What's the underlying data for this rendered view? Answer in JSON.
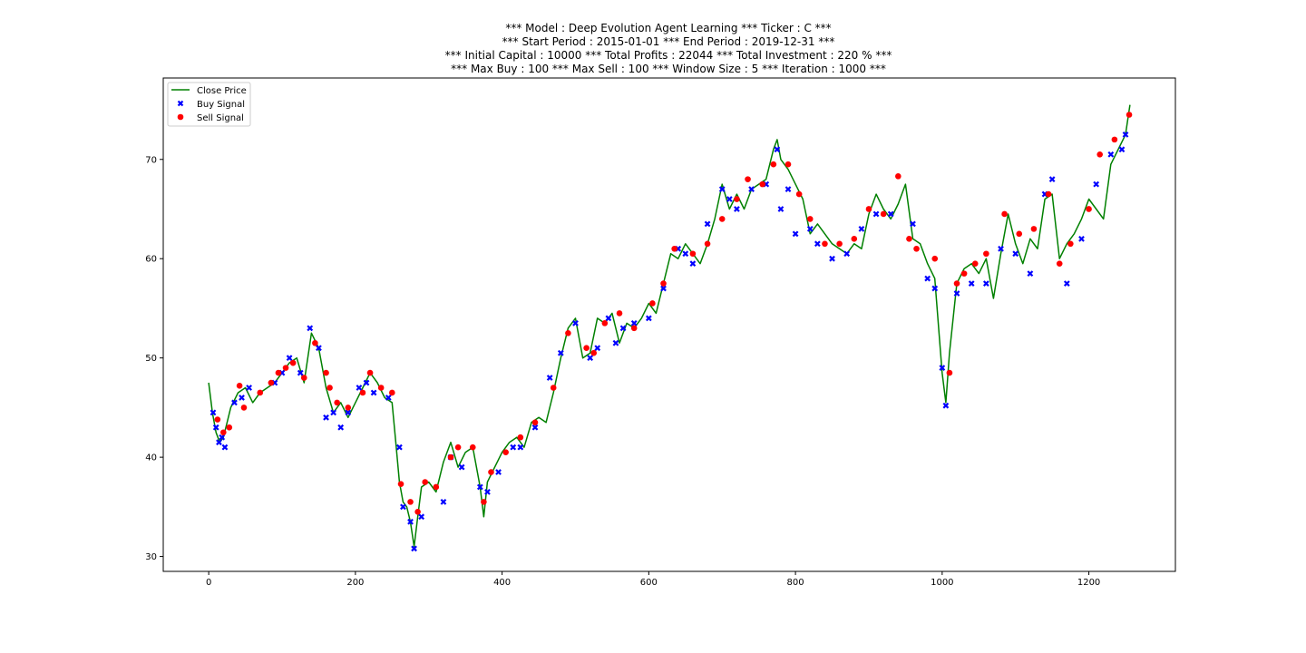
{
  "chart_data": {
    "type": "line",
    "title_lines": [
      "*** Model : Deep Evolution Agent Learning *** Ticker : C ***",
      "*** Start Period : 2015-01-01 *** End Period : 2019-12-31 ***",
      "*** Initial Capital : 10000 *** Total Profits : 22044 *** Total Investment : 220 % ***",
      "*** Max Buy : 100 *** Max Sell : 100 *** Window Size : 5 *** Iteration : 1000 ***"
    ],
    "xlabel": "",
    "ylabel": "",
    "xlim": [
      -62,
      1318
    ],
    "ylim": [
      28.5,
      78.2
    ],
    "x_ticks": [
      0,
      200,
      400,
      600,
      800,
      1000,
      1200
    ],
    "y_ticks": [
      30,
      40,
      50,
      60,
      70
    ],
    "legend_position": "top-left",
    "colors": {
      "close": "#008000",
      "buy": "#0000ff",
      "sell": "#ff0000"
    },
    "series": [
      {
        "name": "Close Price",
        "type": "line",
        "x": [
          0,
          5,
          10,
          15,
          20,
          25,
          30,
          40,
          50,
          60,
          70,
          80,
          90,
          100,
          110,
          120,
          130,
          140,
          150,
          160,
          170,
          180,
          190,
          200,
          210,
          220,
          230,
          240,
          250,
          255,
          260,
          265,
          270,
          275,
          280,
          285,
          290,
          300,
          310,
          320,
          330,
          340,
          350,
          360,
          370,
          375,
          380,
          390,
          400,
          410,
          420,
          430,
          440,
          450,
          460,
          470,
          480,
          490,
          500,
          510,
          520,
          530,
          540,
          550,
          560,
          570,
          580,
          590,
          600,
          610,
          620,
          630,
          640,
          650,
          660,
          670,
          680,
          690,
          700,
          710,
          720,
          730,
          740,
          750,
          760,
          770,
          775,
          780,
          790,
          800,
          810,
          820,
          830,
          840,
          850,
          860,
          870,
          880,
          890,
          900,
          910,
          920,
          930,
          940,
          950,
          960,
          970,
          980,
          990,
          1000,
          1005,
          1010,
          1020,
          1030,
          1040,
          1050,
          1060,
          1070,
          1080,
          1090,
          1100,
          1110,
          1120,
          1130,
          1140,
          1150,
          1160,
          1170,
          1180,
          1190,
          1200,
          1210,
          1220,
          1230,
          1240,
          1250,
          1256
        ],
        "y": [
          47.5,
          44.5,
          42.5,
          41.5,
          42.0,
          43.5,
          45.0,
          46.5,
          47.0,
          45.5,
          46.5,
          47.0,
          47.5,
          48.5,
          49.5,
          50.0,
          47.5,
          52.5,
          51.0,
          47.0,
          44.5,
          45.5,
          44.0,
          45.5,
          47.0,
          48.5,
          47.5,
          46.0,
          45.5,
          41.5,
          37.5,
          35.5,
          35.0,
          33.5,
          31.0,
          34.0,
          37.0,
          37.5,
          36.5,
          39.5,
          41.5,
          39.0,
          40.5,
          41.0,
          37.0,
          34.0,
          37.5,
          39.0,
          40.5,
          41.5,
          42.0,
          41.0,
          43.5,
          44.0,
          43.5,
          46.5,
          50.0,
          53.0,
          54.0,
          50.0,
          50.5,
          54.0,
          53.5,
          54.5,
          51.5,
          53.5,
          53.0,
          54.0,
          55.5,
          54.5,
          57.5,
          60.5,
          60.0,
          61.5,
          60.5,
          59.5,
          61.5,
          64.0,
          67.5,
          65.0,
          66.5,
          65.0,
          67.0,
          67.5,
          68.0,
          71.0,
          72.0,
          70.0,
          69.0,
          67.5,
          66.0,
          62.5,
          63.5,
          62.5,
          61.5,
          61.0,
          60.5,
          61.5,
          61.0,
          64.5,
          66.5,
          65.0,
          64.0,
          65.5,
          67.5,
          62.0,
          61.5,
          59.5,
          58.0,
          48.5,
          45.5,
          50.5,
          57.5,
          59.0,
          59.5,
          58.5,
          60.0,
          56.0,
          60.5,
          64.5,
          61.5,
          59.5,
          62.0,
          61.0,
          66.0,
          66.5,
          60.0,
          61.5,
          62.5,
          64.0,
          66.0,
          65.0,
          64.0,
          69.5,
          71.0,
          72.5,
          75.5
        ]
      },
      {
        "name": "Buy Signal",
        "type": "scatter",
        "marker": "X",
        "x": [
          6,
          10,
          14,
          18,
          22,
          35,
          45,
          55,
          90,
          100,
          110,
          125,
          138,
          150,
          160,
          170,
          180,
          190,
          205,
          215,
          225,
          245,
          260,
          265,
          275,
          280,
          290,
          320,
          330,
          345,
          370,
          380,
          395,
          415,
          425,
          445,
          465,
          480,
          500,
          520,
          530,
          545,
          555,
          565,
          580,
          600,
          620,
          640,
          650,
          660,
          680,
          700,
          710,
          720,
          740,
          760,
          775,
          780,
          790,
          800,
          820,
          830,
          850,
          870,
          890,
          910,
          930,
          960,
          980,
          990,
          1000,
          1005,
          1020,
          1040,
          1060,
          1080,
          1100,
          1120,
          1140,
          1150,
          1170,
          1190,
          1210,
          1230,
          1245,
          1250
        ],
        "y": [
          44.5,
          43.0,
          41.5,
          42.0,
          41.0,
          45.5,
          46.0,
          47.0,
          47.5,
          48.5,
          50.0,
          48.5,
          53.0,
          51.0,
          44.0,
          44.5,
          43.0,
          44.5,
          47.0,
          47.5,
          46.5,
          46.0,
          41.0,
          35.0,
          33.5,
          30.8,
          34.0,
          35.5,
          40.0,
          39.0,
          37.0,
          36.5,
          38.5,
          41.0,
          41.0,
          43.0,
          48.0,
          50.5,
          53.5,
          50.0,
          51.0,
          54.0,
          51.5,
          53.0,
          53.5,
          54.0,
          57.0,
          61.0,
          60.5,
          59.5,
          63.5,
          67.0,
          66.0,
          65.0,
          67.0,
          67.5,
          71.0,
          65.0,
          67.0,
          62.5,
          63.0,
          61.5,
          60.0,
          60.5,
          63.0,
          64.5,
          64.5,
          63.5,
          58.0,
          57.0,
          49.0,
          45.2,
          56.5,
          57.5,
          57.5,
          61.0,
          60.5,
          58.5,
          66.5,
          68.0,
          57.5,
          62.0,
          67.5,
          70.5,
          71.0,
          72.5
        ]
      },
      {
        "name": "Sell Signal",
        "type": "scatter",
        "marker": "o",
        "x": [
          12,
          20,
          28,
          42,
          48,
          70,
          85,
          95,
          105,
          115,
          130,
          145,
          160,
          165,
          175,
          190,
          210,
          220,
          235,
          250,
          262,
          275,
          285,
          295,
          310,
          330,
          340,
          360,
          375,
          385,
          405,
          425,
          445,
          470,
          490,
          515,
          525,
          540,
          560,
          580,
          605,
          620,
          635,
          660,
          680,
          700,
          720,
          735,
          755,
          770,
          790,
          805,
          820,
          840,
          860,
          880,
          900,
          920,
          940,
          955,
          965,
          990,
          1010,
          1020,
          1030,
          1045,
          1060,
          1085,
          1105,
          1125,
          1145,
          1160,
          1175,
          1200,
          1215,
          1235,
          1255
        ],
        "y": [
          43.8,
          42.5,
          43.0,
          47.2,
          45.0,
          46.5,
          47.5,
          48.5,
          49.0,
          49.5,
          48.0,
          51.5,
          48.5,
          47.0,
          45.5,
          45.0,
          46.5,
          48.5,
          47.0,
          46.5,
          37.3,
          35.5,
          34.5,
          37.5,
          37.0,
          40.0,
          41.0,
          41.0,
          35.5,
          38.5,
          40.5,
          42.0,
          43.5,
          47.0,
          52.5,
          51.0,
          50.5,
          53.5,
          54.5,
          53.0,
          55.5,
          57.5,
          61.0,
          60.5,
          61.5,
          64.0,
          66.0,
          68.0,
          67.5,
          69.5,
          69.5,
          66.5,
          64.0,
          61.5,
          61.5,
          62.0,
          65.0,
          64.5,
          68.3,
          62.0,
          61.0,
          60.0,
          48.5,
          57.5,
          58.5,
          59.5,
          60.5,
          64.5,
          62.5,
          63.0,
          66.5,
          59.5,
          61.5,
          65.0,
          70.5,
          72.0,
          74.5
        ]
      }
    ]
  }
}
